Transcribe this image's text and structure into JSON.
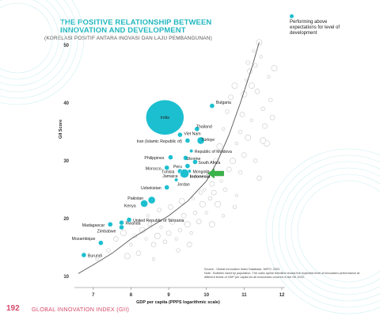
{
  "header": {
    "title": "THE POSITIVE RELATIONSHIP BETWEEN INNOVATION AND DEVELOPMENT",
    "subtitle": "(KORELASI POSITIF ANTARA INOVASI DAN LAJU PEMBANGUNAN)"
  },
  "legend": {
    "label": "Performing above expectations for level of development",
    "color": "#1cbfd0"
  },
  "source": {
    "line1": "Source : Global Innovation Index Database, WIPO, 2022.",
    "line2": "Note : Bubbles sized by population. The cubic spline trendline shows the expected level of innovation performance at different levels of GDP per capita for all economies covered in the GII 2022."
  },
  "footer": {
    "page_number": "192",
    "label": "GLOBAL INNOVATION INDEX (GII)"
  },
  "colors": {
    "highlight": "#1cbfd0",
    "other": "#c8c8c8",
    "trend": "#555555",
    "arrow": "#39b54a",
    "accent": "#22b7bf"
  },
  "chart_data": {
    "type": "scatter",
    "xlabel": "GDP per capita (PPPS logarithmic scale)",
    "ylabel": "GII Score",
    "xlim": [
      6.5,
      12
    ],
    "ylim": [
      10,
      50
    ],
    "x_ticks": [
      7,
      8,
      9,
      10,
      11,
      12
    ],
    "y_ticks": [
      10,
      20,
      30,
      40,
      50
    ],
    "highlighted_points": [
      {
        "label": "India",
        "x": 8.9,
        "y": 37.5,
        "size": "xlarge"
      },
      {
        "label": "Bulgaria",
        "x": 10.15,
        "y": 39.5,
        "size": "small"
      },
      {
        "label": "Thailand",
        "x": 9.75,
        "y": 35.5,
        "size": "small"
      },
      {
        "label": "Viet Nam",
        "x": 9.3,
        "y": 34.5,
        "size": "small"
      },
      {
        "label": "Iran (Islamic Republic of)",
        "x": 9.5,
        "y": 33.5,
        "size": "small"
      },
      {
        "label": "Türkiye",
        "x": 9.85,
        "y": 33.5,
        "size": "medium"
      },
      {
        "label": "Republic of Moldova",
        "x": 9.6,
        "y": 31.7,
        "size": "tiny"
      },
      {
        "label": "Philippines",
        "x": 9.05,
        "y": 30.6,
        "size": "small"
      },
      {
        "label": "Ukraine",
        "x": 9.45,
        "y": 30.5,
        "size": "small"
      },
      {
        "label": "South Africa",
        "x": 9.7,
        "y": 29.8,
        "size": "small"
      },
      {
        "label": "Peru",
        "x": 9.5,
        "y": 29.1,
        "size": "small"
      },
      {
        "label": "Morocco",
        "x": 8.95,
        "y": 28.8,
        "size": "small"
      },
      {
        "label": "Tunisia",
        "x": 9.3,
        "y": 28.2,
        "size": "small"
      },
      {
        "label": "Mongolia",
        "x": 9.55,
        "y": 28.2,
        "size": "tiny"
      },
      {
        "label": "Jamaica",
        "x": 9.35,
        "y": 27.5,
        "size": "tiny"
      },
      {
        "label": "Indonesia",
        "x": 9.42,
        "y": 27.8,
        "size": "large"
      },
      {
        "label": "Jordan",
        "x": 9.2,
        "y": 26.7,
        "size": "tiny"
      },
      {
        "label": "Uzbekistan",
        "x": 8.95,
        "y": 25.4,
        "size": "small"
      },
      {
        "label": "Pakistan",
        "x": 8.55,
        "y": 23.2,
        "size": "medium"
      },
      {
        "label": "Kenya",
        "x": 8.35,
        "y": 22.6,
        "size": "medium"
      },
      {
        "label": "United Republic of Tanzania",
        "x": 7.95,
        "y": 19.8,
        "size": "small"
      },
      {
        "label": "Rwanda",
        "x": 7.75,
        "y": 19.3,
        "size": "small"
      },
      {
        "label": "Madagascar",
        "x": 7.45,
        "y": 19.0,
        "size": "small"
      },
      {
        "label": "Zimbabwe",
        "x": 7.75,
        "y": 18.5,
        "size": "small"
      },
      {
        "label": "Mozambique",
        "x": 7.2,
        "y": 15.8,
        "size": "small"
      },
      {
        "label": "Burundi",
        "x": 6.75,
        "y": 13.7,
        "size": "small"
      }
    ],
    "other_points": [
      [
        7.1,
        13
      ],
      [
        7.4,
        14.5
      ],
      [
        7.6,
        16.5
      ],
      [
        7.8,
        17.5
      ],
      [
        8.0,
        15.5
      ],
      [
        8.1,
        17
      ],
      [
        8.2,
        14
      ],
      [
        8.3,
        18
      ],
      [
        8.4,
        16.5
      ],
      [
        8.5,
        19
      ],
      [
        8.6,
        15.5
      ],
      [
        8.7,
        17
      ],
      [
        8.8,
        18.5
      ],
      [
        8.9,
        16
      ],
      [
        9.0,
        17.5
      ],
      [
        9.1,
        19.5
      ],
      [
        9.2,
        16.5
      ],
      [
        9.3,
        18
      ],
      [
        9.4,
        20.5
      ],
      [
        9.5,
        19
      ],
      [
        9.6,
        17.5
      ],
      [
        9.7,
        21
      ],
      [
        9.8,
        19.5
      ],
      [
        9.9,
        22.5
      ],
      [
        10.0,
        21
      ],
      [
        10.1,
        23.5
      ],
      [
        10.2,
        24.5
      ],
      [
        10.3,
        22.5
      ],
      [
        10.4,
        26.5
      ],
      [
        10.5,
        25
      ],
      [
        10.6,
        28.5
      ],
      [
        10.7,
        30
      ],
      [
        10.8,
        33
      ],
      [
        10.9,
        35
      ],
      [
        10.95,
        38
      ],
      [
        11.0,
        41.5
      ],
      [
        11.05,
        44
      ],
      [
        11.1,
        47
      ],
      [
        11.15,
        45.5
      ],
      [
        11.2,
        43
      ],
      [
        11.25,
        49
      ],
      [
        11.3,
        46.5
      ],
      [
        11.35,
        42
      ],
      [
        11.4,
        50.5
      ],
      [
        11.45,
        48
      ],
      [
        11.5,
        39
      ],
      [
        11.55,
        36
      ],
      [
        11.6,
        33
      ],
      [
        11.65,
        44.5
      ],
      [
        11.7,
        40.5
      ],
      [
        11.75,
        37.5
      ],
      [
        11.8,
        46
      ],
      [
        10.8,
        24
      ],
      [
        10.9,
        28
      ],
      [
        11.0,
        31
      ],
      [
        11.1,
        34
      ],
      [
        11.2,
        37
      ],
      [
        11.3,
        30
      ],
      [
        11.4,
        27
      ],
      [
        11.5,
        33.5
      ],
      [
        9.95,
        25
      ],
      [
        10.05,
        28
      ],
      [
        10.25,
        30
      ],
      [
        10.35,
        32.5
      ],
      [
        10.45,
        35.5
      ],
      [
        10.55,
        38.5
      ],
      [
        10.65,
        41
      ],
      [
        10.75,
        43
      ],
      [
        8.45,
        20.5
      ],
      [
        8.75,
        21.5
      ],
      [
        9.05,
        22
      ],
      [
        9.35,
        23
      ],
      [
        9.65,
        23.5
      ],
      [
        9.85,
        24.5
      ],
      [
        10.15,
        26
      ],
      [
        7.9,
        13.5
      ],
      [
        8.6,
        13
      ],
      [
        9.25,
        14.5
      ],
      [
        9.55,
        15.5
      ],
      [
        10.15,
        19
      ],
      [
        10.45,
        20.5
      ],
      [
        10.75,
        22
      ]
    ],
    "trend_line": [
      [
        6.6,
        10.5
      ],
      [
        7.0,
        12.0
      ],
      [
        7.5,
        14.0
      ],
      [
        8.0,
        16.5
      ],
      [
        8.5,
        18.5
      ],
      [
        9.0,
        20.5
      ],
      [
        9.5,
        23.0
      ],
      [
        10.0,
        26.5
      ],
      [
        10.3,
        30.0
      ],
      [
        10.6,
        34.5
      ],
      [
        10.9,
        40.0
      ],
      [
        11.2,
        46.0
      ],
      [
        11.4,
        50.5
      ]
    ],
    "annotation": {
      "label": "Indonesia",
      "marker": "arrow",
      "x": 10.25,
      "y": 27.8
    }
  }
}
